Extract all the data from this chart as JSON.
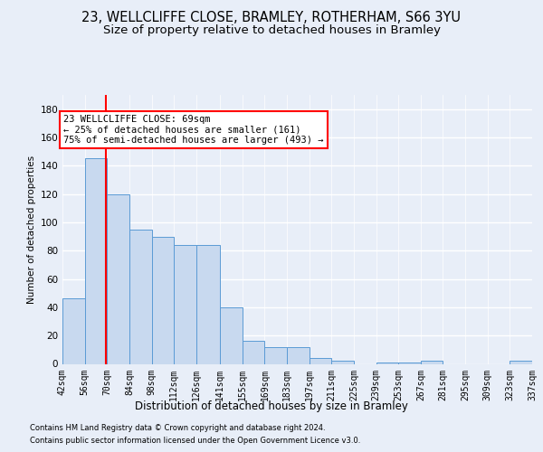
{
  "title1": "23, WELLCLIFFE CLOSE, BRAMLEY, ROTHERHAM, S66 3YU",
  "title2": "Size of property relative to detached houses in Bramley",
  "xlabel": "Distribution of detached houses by size in Bramley",
  "ylabel": "Number of detached properties",
  "footer1": "Contains HM Land Registry data © Crown copyright and database right 2024.",
  "footer2": "Contains public sector information licensed under the Open Government Licence v3.0.",
  "annotation_line1": "23 WELLCLIFFE CLOSE: 69sqm",
  "annotation_line2": "← 25% of detached houses are smaller (161)",
  "annotation_line3": "75% of semi-detached houses are larger (493) →",
  "bin_edges": [
    42,
    56,
    70,
    84,
    98,
    112,
    126,
    141,
    155,
    169,
    183,
    197,
    211,
    225,
    239,
    253,
    267,
    281,
    295,
    309,
    323
  ],
  "bar_heights": [
    46,
    145,
    120,
    95,
    90,
    84,
    84,
    40,
    16,
    12,
    12,
    4,
    2,
    0,
    1,
    1,
    2,
    0,
    0,
    0,
    2
  ],
  "bar_color": "#c8d9ef",
  "bar_edge_color": "#5b9bd5",
  "red_line_x": 69,
  "ylim": [
    0,
    190
  ],
  "yticks": [
    0,
    20,
    40,
    60,
    80,
    100,
    120,
    140,
    160,
    180
  ],
  "bg_color": "#e8eef8",
  "grid_color": "#ffffff",
  "title1_fontsize": 10.5,
  "title2_fontsize": 9.5,
  "xlabel_fontsize": 8.5,
  "ylabel_fontsize": 7.5,
  "tick_fontsize": 7,
  "footer_fontsize": 6.0,
  "ann_fontsize": 7.5
}
